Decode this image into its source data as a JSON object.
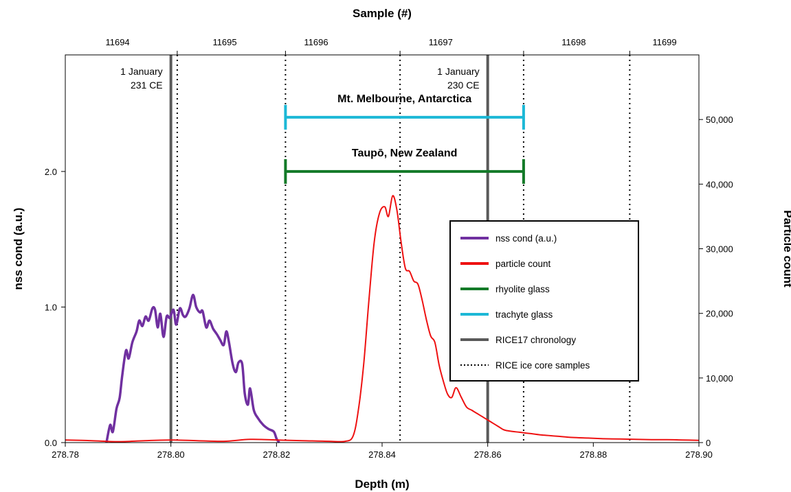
{
  "chart_data": {
    "type": "line",
    "xlabel": "Depth (m)",
    "top_xlabel": "Sample (#)",
    "ylabel": "nss cond (a.u.)",
    "y2label": "Particle count",
    "xlim": [
      278.78,
      278.9
    ],
    "ylim": [
      0,
      2.86
    ],
    "y2lim": [
      0,
      60000
    ],
    "grid": false,
    "legend_position": "right",
    "xticks": [
      "278.78",
      "278.80",
      "278.82",
      "278.84",
      "278.86",
      "278.88",
      "278.90"
    ],
    "yticks": [
      {
        "value": 0,
        "label": "0.0"
      },
      {
        "value": 1,
        "label": "1.0"
      },
      {
        "value": 2,
        "label": "2.0"
      }
    ],
    "y2ticks": [
      {
        "value": 0,
        "label": "0"
      },
      {
        "value": 10000,
        "label": "10,000"
      },
      {
        "value": 20000,
        "label": "20,000"
      },
      {
        "value": 30000,
        "label": "30,000"
      },
      {
        "value": 40000,
        "label": "40,000"
      },
      {
        "value": 50000,
        "label": "50,000"
      }
    ],
    "sample_ticks": [
      {
        "label": "11694",
        "depth": 278.7899
      },
      {
        "label": "11695",
        "depth": 278.8102
      },
      {
        "label": "11696",
        "depth": 278.8275
      },
      {
        "label": "11697",
        "depth": 278.8511
      },
      {
        "label": "11698",
        "depth": 278.8763
      },
      {
        "label": "11699",
        "depth": 278.8935
      }
    ],
    "sample_boundaries": [
      278.8012,
      278.8217,
      278.8434,
      278.8668,
      278.8869
    ],
    "chronology_lines": [
      278.8,
      278.86
    ],
    "chronology_labels": [
      {
        "depth": 278.8,
        "lines": [
          "1 January",
          "231 CE"
        ]
      },
      {
        "depth": 278.86,
        "lines": [
          "1 January",
          "230 CE"
        ]
      }
    ],
    "ranges": [
      {
        "name": "Mt. Melbourne, Antarctica",
        "x0": 278.8217,
        "x1": 278.8668,
        "y": 2.4,
        "color": "#1cb8d6"
      },
      {
        "name": "Taupō, New Zealand",
        "x0": 278.8217,
        "x1": 278.8668,
        "y": 2.0,
        "color": "#137a28"
      }
    ],
    "series": [
      {
        "name": "nss cond (a.u.)",
        "axis": "left",
        "color": "#7030a0",
        "points": [
          [
            278.7878,
            0.0
          ],
          [
            278.7885,
            0.13
          ],
          [
            278.789,
            0.08
          ],
          [
            278.7897,
            0.25
          ],
          [
            278.7903,
            0.33
          ],
          [
            278.7908,
            0.5
          ],
          [
            278.7915,
            0.68
          ],
          [
            278.792,
            0.62
          ],
          [
            278.7927,
            0.74
          ],
          [
            278.7935,
            0.82
          ],
          [
            278.794,
            0.9
          ],
          [
            278.7946,
            0.86
          ],
          [
            278.7952,
            0.93
          ],
          [
            278.7958,
            0.9
          ],
          [
            278.7965,
            0.99
          ],
          [
            278.797,
            0.98
          ],
          [
            278.7975,
            0.85
          ],
          [
            278.798,
            0.95
          ],
          [
            278.7986,
            0.78
          ],
          [
            278.7992,
            0.93
          ],
          [
            278.7998,
            0.92
          ],
          [
            278.8005,
            0.98
          ],
          [
            278.801,
            0.87
          ],
          [
            278.8017,
            0.99
          ],
          [
            278.8023,
            0.94
          ],
          [
            278.8028,
            0.93
          ],
          [
            278.8035,
            0.99
          ],
          [
            278.8042,
            1.09
          ],
          [
            278.8048,
            1.0
          ],
          [
            278.8055,
            0.96
          ],
          [
            278.806,
            0.97
          ],
          [
            278.8067,
            0.85
          ],
          [
            278.8073,
            0.9
          ],
          [
            278.808,
            0.84
          ],
          [
            278.8087,
            0.8
          ],
          [
            278.8093,
            0.76
          ],
          [
            278.81,
            0.72
          ],
          [
            278.8105,
            0.82
          ],
          [
            278.811,
            0.74
          ],
          [
            278.8117,
            0.58
          ],
          [
            278.8123,
            0.52
          ],
          [
            278.8128,
            0.59
          ],
          [
            278.8135,
            0.58
          ],
          [
            278.814,
            0.36
          ],
          [
            278.8146,
            0.28
          ],
          [
            278.815,
            0.4
          ],
          [
            278.8157,
            0.24
          ],
          [
            278.8165,
            0.18
          ],
          [
            278.8175,
            0.13
          ],
          [
            278.8185,
            0.1
          ],
          [
            278.8195,
            0.08
          ],
          [
            278.82,
            0.03
          ],
          [
            278.8205,
            0.0
          ]
        ]
      },
      {
        "name": "particle count",
        "axis": "right",
        "color": "#ee1111",
        "points": [
          [
            278.78,
            400
          ],
          [
            278.785,
            300
          ],
          [
            278.79,
            150
          ],
          [
            278.795,
            300
          ],
          [
            278.8,
            400
          ],
          [
            278.805,
            300
          ],
          [
            278.81,
            200
          ],
          [
            278.815,
            500
          ],
          [
            278.82,
            400
          ],
          [
            278.825,
            300
          ],
          [
            278.83,
            200
          ],
          [
            278.833,
            200
          ],
          [
            278.8345,
            1000
          ],
          [
            278.8355,
            5000
          ],
          [
            278.8365,
            12000
          ],
          [
            278.8375,
            22000
          ],
          [
            278.8385,
            31000
          ],
          [
            278.8395,
            35500
          ],
          [
            278.8405,
            36500
          ],
          [
            278.8412,
            35000
          ],
          [
            278.842,
            38200
          ],
          [
            278.8428,
            36000
          ],
          [
            278.8436,
            31000
          ],
          [
            278.8444,
            27000
          ],
          [
            278.8452,
            26500
          ],
          [
            278.846,
            25000
          ],
          [
            278.8468,
            24500
          ],
          [
            278.8476,
            22000
          ],
          [
            278.8484,
            19000
          ],
          [
            278.8492,
            16500
          ],
          [
            278.85,
            15500
          ],
          [
            278.8508,
            12000
          ],
          [
            278.8516,
            9500
          ],
          [
            278.8524,
            7500
          ],
          [
            278.8532,
            7000
          ],
          [
            278.854,
            8500
          ],
          [
            278.855,
            7000
          ],
          [
            278.856,
            5500
          ],
          [
            278.857,
            5000
          ],
          [
            278.858,
            4500
          ],
          [
            278.859,
            4000
          ],
          [
            278.86,
            3500
          ],
          [
            278.861,
            3000
          ],
          [
            278.862,
            2500
          ],
          [
            278.863,
            2000
          ],
          [
            278.864,
            1800
          ],
          [
            278.866,
            1600
          ],
          [
            278.868,
            1400
          ],
          [
            278.87,
            1200
          ],
          [
            278.873,
            1000
          ],
          [
            278.876,
            800
          ],
          [
            278.879,
            700
          ],
          [
            278.882,
            600
          ],
          [
            278.885,
            550
          ],
          [
            278.888,
            500
          ],
          [
            278.891,
            450
          ],
          [
            278.894,
            450
          ],
          [
            278.897,
            400
          ],
          [
            278.9,
            350
          ]
        ]
      }
    ],
    "legend": [
      {
        "label": "nss cond (a.u.)",
        "color": "#7030a0",
        "style": "solid"
      },
      {
        "label": "particle count",
        "color": "#ee1111",
        "style": "solid"
      },
      {
        "label": "rhyolite glass",
        "color": "#137a28",
        "style": "solid"
      },
      {
        "label": " trachyte glass",
        "color": "#1cb8d6",
        "style": "solid"
      },
      {
        "label": "RICE17 chronology",
        "color": "#5a5a5a",
        "style": "solid"
      },
      {
        "label": "RICE ice core samples",
        "color": "#000000",
        "style": "dotted"
      }
    ]
  }
}
